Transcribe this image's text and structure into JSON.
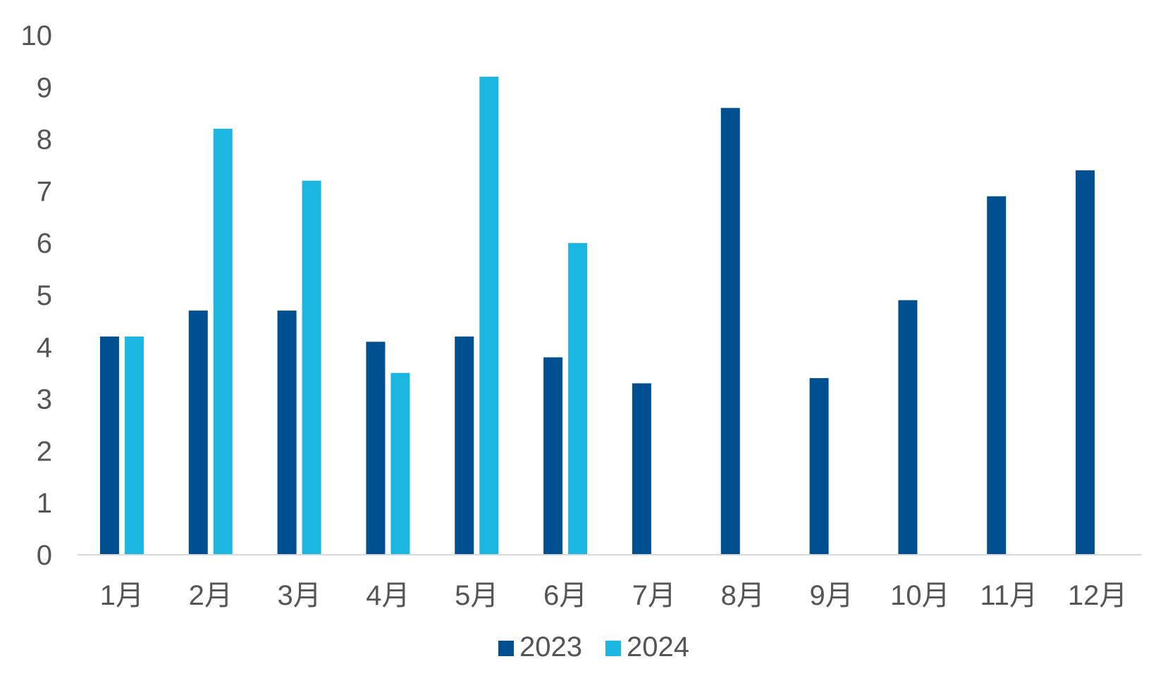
{
  "chart_data": {
    "type": "bar",
    "title": "",
    "xlabel": "",
    "ylabel": "",
    "categories": [
      "1月",
      "2月",
      "3月",
      "4月",
      "5月",
      "6月",
      "7月",
      "8月",
      "9月",
      "10月",
      "11月",
      "12月"
    ],
    "series": [
      {
        "name": "2023",
        "color": "#004F91",
        "values": [
          4.2,
          4.7,
          4.7,
          4.1,
          4.2,
          3.8,
          3.3,
          8.6,
          3.4,
          4.9,
          6.9,
          7.4
        ]
      },
      {
        "name": "2024",
        "color": "#1CB7E0",
        "values": [
          4.2,
          8.2,
          7.2,
          3.5,
          9.2,
          6.0,
          null,
          null,
          null,
          null,
          null,
          null
        ]
      }
    ],
    "ylim": [
      0,
      10
    ],
    "yticks": [
      "0",
      "1",
      "2",
      "3",
      "4",
      "5",
      "6",
      "7",
      "8",
      "9",
      "10"
    ],
    "grid": false,
    "legend_position": "bottom-center",
    "axis_color": "#D9D9D9",
    "text_color": "#555555"
  }
}
